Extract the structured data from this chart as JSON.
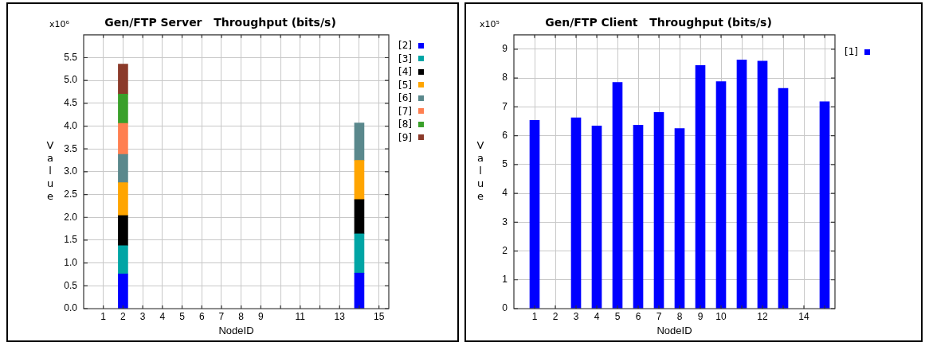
{
  "chart_data": [
    {
      "type": "bar",
      "title": "Gen/FTP Server   Throughput (bits/s)",
      "xlabel": "NodeID",
      "ylabel": "Value",
      "annotations": [
        "x10⁶"
      ],
      "stacked": true,
      "x": [
        2,
        14
      ],
      "series": [
        {
          "name": "[2]",
          "color": "#0000ff",
          "values": [
            0.76,
            0.78
          ]
        },
        {
          "name": "[3]",
          "color": "#00a5a5",
          "values": [
            0.62,
            0.86
          ]
        },
        {
          "name": "[4]",
          "color": "#000000",
          "values": [
            0.66,
            0.75
          ]
        },
        {
          "name": "[5]",
          "color": "#ffa500",
          "values": [
            0.72,
            0.86
          ]
        },
        {
          "name": "[6]",
          "color": "#5a888c",
          "values": [
            0.62,
            0.82
          ]
        },
        {
          "name": "[7]",
          "color": "#ff7f50",
          "values": [
            0.68,
            null
          ]
        },
        {
          "name": "[8]",
          "color": "#3aa02a",
          "values": [
            0.64,
            null
          ]
        },
        {
          "name": "[9]",
          "color": "#8b3a2a",
          "values": [
            0.66,
            null
          ]
        }
      ],
      "xlim": [
        0,
        15.5
      ],
      "xticks": [
        1,
        2,
        3,
        4,
        5,
        6,
        7,
        8,
        9,
        {
          "value": 10,
          "label": null
        },
        11,
        {
          "value": 12,
          "label": null
        },
        13,
        {
          "value": 14,
          "label": null
        },
        15
      ],
      "ylim": [
        0,
        6
      ],
      "yticks": [
        {
          "value": 0,
          "label": "0.0"
        },
        0.5,
        {
          "value": 1,
          "label": "1.0"
        },
        1.5,
        {
          "value": 2,
          "label": "2.0"
        },
        2.5,
        {
          "value": 3,
          "label": "3.0"
        },
        3.5,
        {
          "value": 4,
          "label": "4.0"
        },
        4.5,
        {
          "value": 5,
          "label": "5.0"
        },
        5.5
      ],
      "grid": true,
      "legend": "top right"
    },
    {
      "type": "bar",
      "title": "Gen/FTP Client   Throughput (bits/s)",
      "xlabel": "NodeID",
      "ylabel": "Value",
      "annotations": [
        "x10⁵"
      ],
      "x": [
        1,
        2,
        3,
        4,
        5,
        6,
        7,
        8,
        9,
        10,
        11,
        12,
        13,
        14,
        15
      ],
      "series": [
        {
          "name": "[1]",
          "color": "#0000ff",
          "values": [
            6.53,
            null,
            6.62,
            6.34,
            7.85,
            6.37,
            6.81,
            6.25,
            8.44,
            7.88,
            8.63,
            8.59,
            7.64,
            null,
            7.18
          ]
        }
      ],
      "xlim": [
        0,
        15.5
      ],
      "xticks": [
        1,
        2,
        3,
        4,
        5,
        6,
        7,
        8,
        9,
        10,
        {
          "value": 11,
          "label": null
        },
        12,
        {
          "value": 13,
          "label": null
        },
        14,
        {
          "value": 15,
          "label": null
        }
      ],
      "ylim": [
        0,
        9.5
      ],
      "yticks": [
        0,
        1,
        2,
        3,
        4,
        5,
        6,
        7,
        8,
        9
      ],
      "grid": true,
      "legend": "top right"
    }
  ]
}
